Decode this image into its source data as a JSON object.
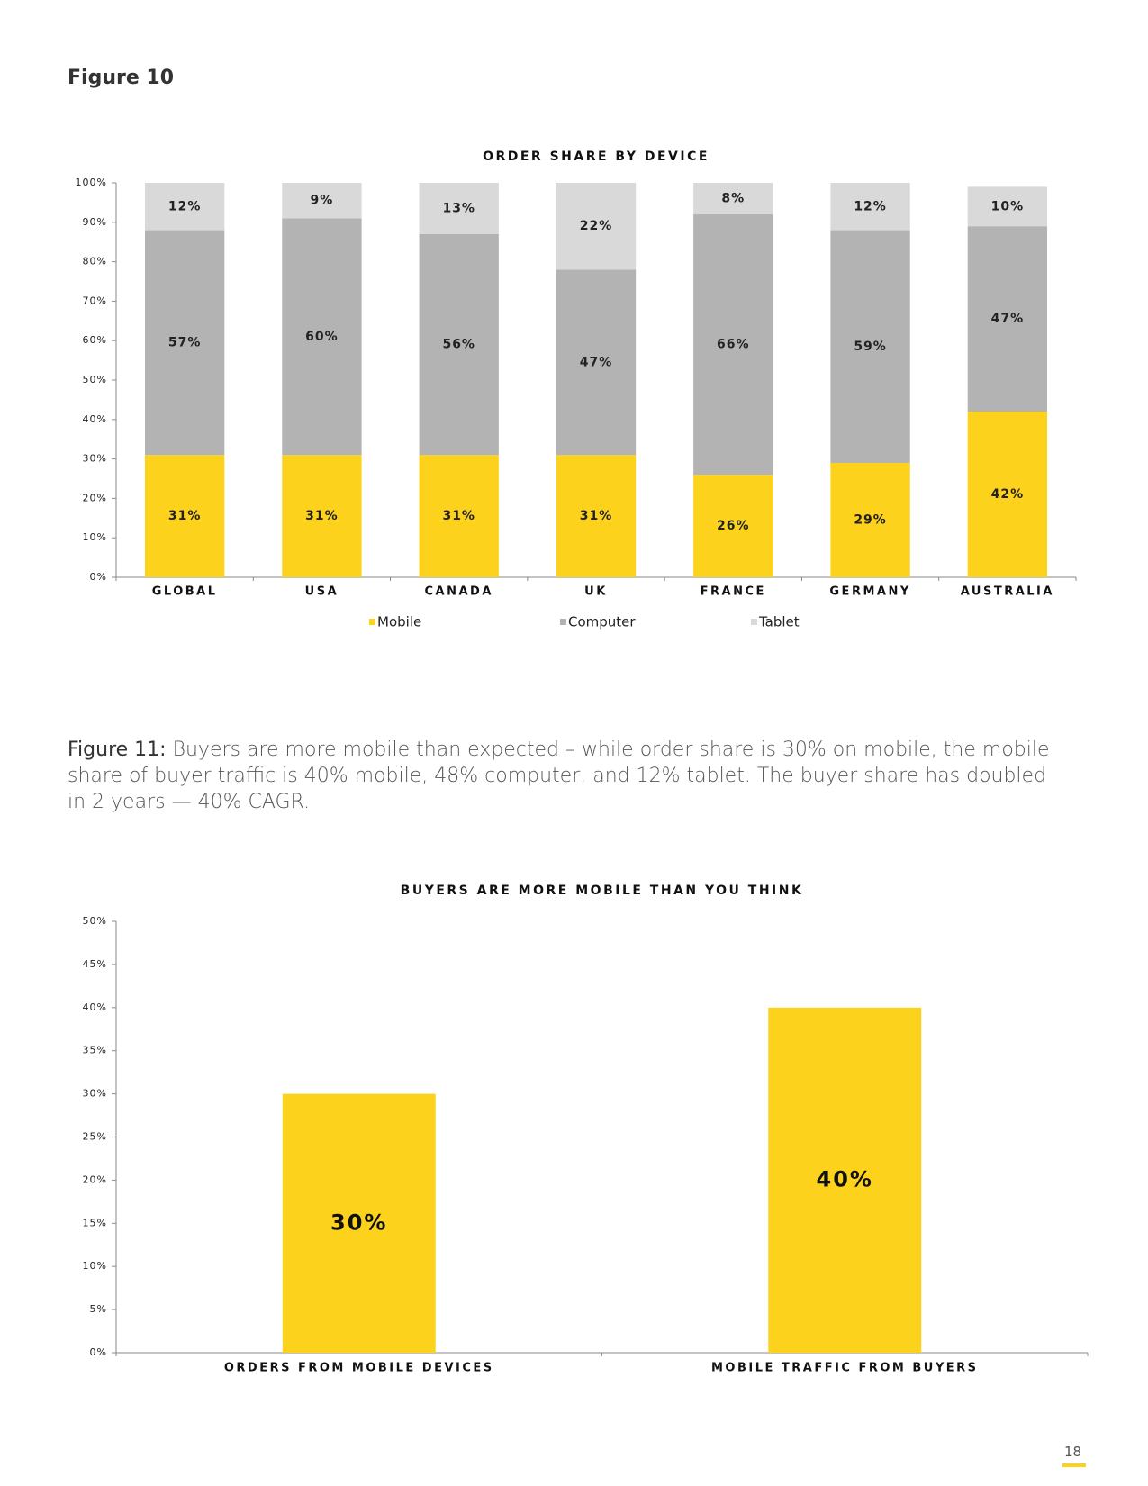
{
  "heading": "Figure 10",
  "chart_data": [
    {
      "type": "stacked_bar",
      "title": "ORDER SHARE BY DEVICE",
      "categories": [
        "GLOBAL",
        "USA",
        "CANADA",
        "UK",
        "FRANCE",
        "GERMANY",
        "AUSTRALIA"
      ],
      "series": [
        {
          "name": "Mobile",
          "color": "#fcd21d",
          "values": [
            31,
            31,
            31,
            31,
            26,
            29,
            42
          ],
          "value_labels": [
            "31%",
            "31%",
            "31%",
            "31%",
            "26%",
            "29%",
            "42%"
          ]
        },
        {
          "name": "Computer",
          "color": "#b3b3b3",
          "values": [
            57,
            60,
            56,
            47,
            66,
            59,
            47
          ],
          "value_labels": [
            "57%",
            "60%",
            "56%",
            "47%",
            "66%",
            "59%",
            "47%"
          ]
        },
        {
          "name": "Tablet",
          "color": "#d9d9d9",
          "values": [
            12,
            9,
            13,
            22,
            8,
            12,
            10
          ],
          "value_labels": [
            "12%",
            "9%",
            "13%",
            "22%",
            "8%",
            "12%",
            "10%"
          ]
        }
      ],
      "ylim": [
        0,
        100
      ],
      "yticks": [
        {
          "value": 0,
          "label": "0%"
        },
        {
          "value": 10,
          "label": "10%"
        },
        {
          "value": 20,
          "label": "20%"
        },
        {
          "value": 30,
          "label": "30%"
        },
        {
          "value": 40,
          "label": "40%"
        },
        {
          "value": 50,
          "label": "50%"
        },
        {
          "value": 60,
          "label": "60%"
        },
        {
          "value": 70,
          "label": "70%"
        },
        {
          "value": 80,
          "label": "80%"
        },
        {
          "value": 90,
          "label": "90%"
        },
        {
          "value": 100,
          "label": "100%"
        }
      ],
      "legend": "bottom"
    },
    {
      "type": "bar",
      "title": "BUYERS ARE MORE MOBILE THAN YOU THINK",
      "categories": [
        "ORDERS FROM MOBILE DEVICES",
        "MOBILE TRAFFIC FROM BUYERS"
      ],
      "values": [
        30,
        40
      ],
      "value_labels": [
        "30%",
        "40%"
      ],
      "color": "#fcd21d",
      "ylim": [
        0,
        50
      ],
      "yticks": [
        {
          "value": 0,
          "label": "0%"
        },
        {
          "value": 5,
          "label": "5%"
        },
        {
          "value": 10,
          "label": "10%"
        },
        {
          "value": 15,
          "label": "15%"
        },
        {
          "value": 20,
          "label": "20%"
        },
        {
          "value": 25,
          "label": "25%"
        },
        {
          "value": 30,
          "label": "30%"
        },
        {
          "value": 35,
          "label": "35%"
        },
        {
          "value": 40,
          "label": "40%"
        },
        {
          "value": 45,
          "label": "45%"
        },
        {
          "value": 50,
          "label": "50%"
        }
      ]
    }
  ],
  "caption": {
    "label": "Figure 11:",
    "text": "Buyers are more mobile than expected – while order share is 30% on mobile, the mobile share of buyer traffic is 40% mobile, 48% computer, and 12% tablet. The buyer share has doubled in 2 years — 40% CAGR."
  },
  "page_number": "18"
}
